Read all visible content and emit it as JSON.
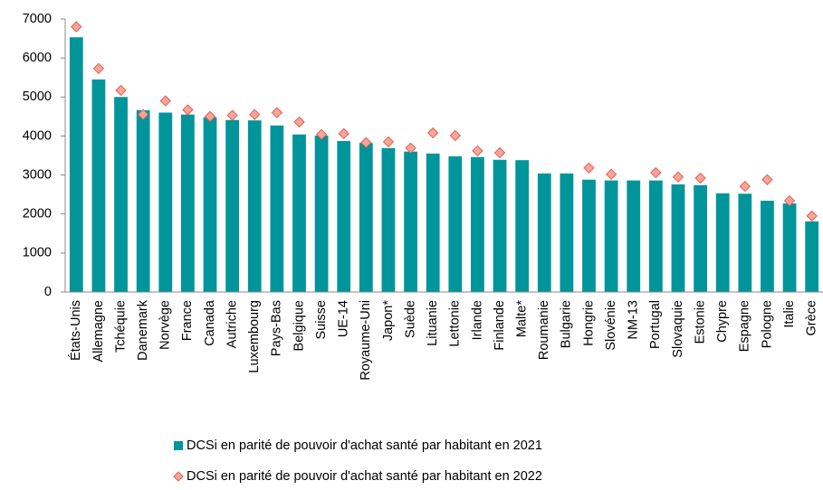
{
  "chart_data": {
    "type": "bar",
    "categories": [
      "États-Unis",
      "Allemagne",
      "Tchéquie",
      "Danemark",
      "Norvège",
      "France",
      "Canada",
      "Autriche",
      "Luxembourg",
      "Pays-Bas",
      "Belgique",
      "Suisse",
      "UE-14",
      "Royaume-Uni",
      "Japon*",
      "Suède",
      "Lituanie",
      "Lettonie",
      "Irlande",
      "Finlande",
      "Malte*",
      "Roumanie",
      "Bulgarie",
      "Hongrie",
      "Slovénie",
      "NM-13",
      "Portugal",
      "Slovaquie",
      "Estonie",
      "Chypre",
      "Espagne",
      "Pologne",
      "Italie",
      "Grèce"
    ],
    "series": [
      {
        "name": "DCSi en parité de pouvoir d'achat santé par habitant en 2021",
        "kind": "bar",
        "color": "#00959a",
        "values": [
          6530,
          5450,
          5000,
          4660,
          4600,
          4550,
          4480,
          4410,
          4400,
          4270,
          4040,
          4010,
          3870,
          3820,
          3690,
          3600,
          3550,
          3480,
          3460,
          3390,
          3380,
          3040,
          3040,
          2880,
          2860,
          2860,
          2860,
          2760,
          2740,
          2530,
          2520,
          2340,
          2270,
          1810
        ]
      },
      {
        "name": "DCSi en parité de pouvoir d'achat santé par habitant en 2022",
        "kind": "diamond",
        "color": "#f7a59c",
        "edge": "#e0604f",
        "values": [
          6800,
          5730,
          5170,
          4550,
          4900,
          4670,
          4500,
          4530,
          4550,
          4600,
          4360,
          4040,
          4060,
          3830,
          3850,
          3690,
          4080,
          4010,
          3620,
          3570,
          null,
          null,
          null,
          3180,
          3020,
          null,
          3060,
          2950,
          2920,
          null,
          2710,
          2880,
          2340,
          1950
        ]
      }
    ],
    "ylim": [
      0,
      7000
    ],
    "yticks": [
      0,
      1000,
      2000,
      3000,
      4000,
      5000,
      6000,
      7000
    ],
    "grid": false
  }
}
